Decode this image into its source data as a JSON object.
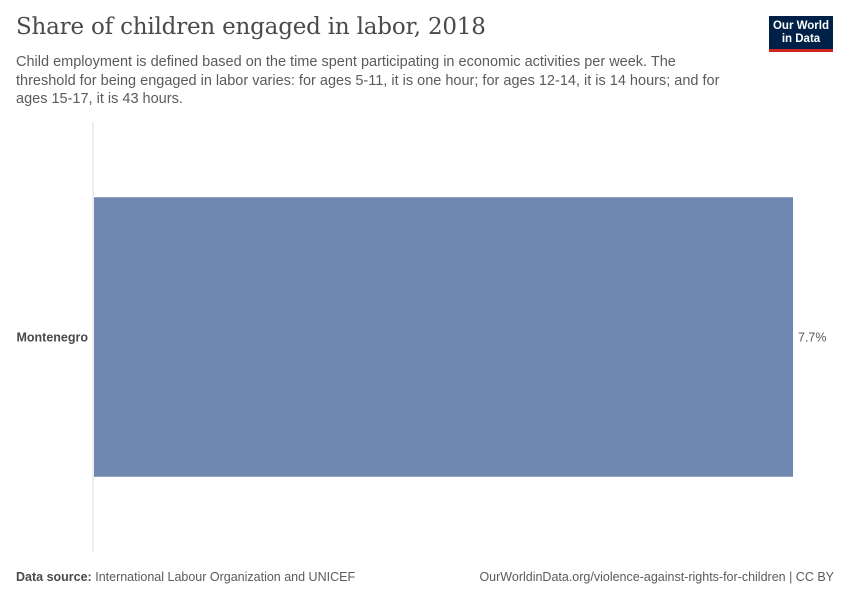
{
  "header": {
    "title": "Share of children engaged in labor, 2018",
    "subtitle": "Child employment is defined based on the time spent participating in economic activities per week. The threshold for being engaged in labor varies: for ages 5-11, it is one hour; for ages 12-14, it is 14 hours; and for ages 15-17, it is 43 hours."
  },
  "logo": {
    "line1": "Our World",
    "line2": "in Data",
    "background": "#002147",
    "accent": "#ce261e"
  },
  "chart_data": {
    "type": "bar",
    "orientation": "horizontal",
    "title": "Share of children engaged in labor, 2018",
    "categories": [
      "Montenegro"
    ],
    "values": [
      7.7
    ],
    "value_labels": [
      "7.7%"
    ],
    "unit": "%",
    "xlim": [
      0,
      7.7
    ],
    "grid": false,
    "bar_color": "#6f88b0"
  },
  "footer": {
    "source_label": "Data source:",
    "source_text": "International Labour Organization and UNICEF",
    "url_text": "OurWorldinData.org/violence-against-rights-for-children | CC BY"
  }
}
